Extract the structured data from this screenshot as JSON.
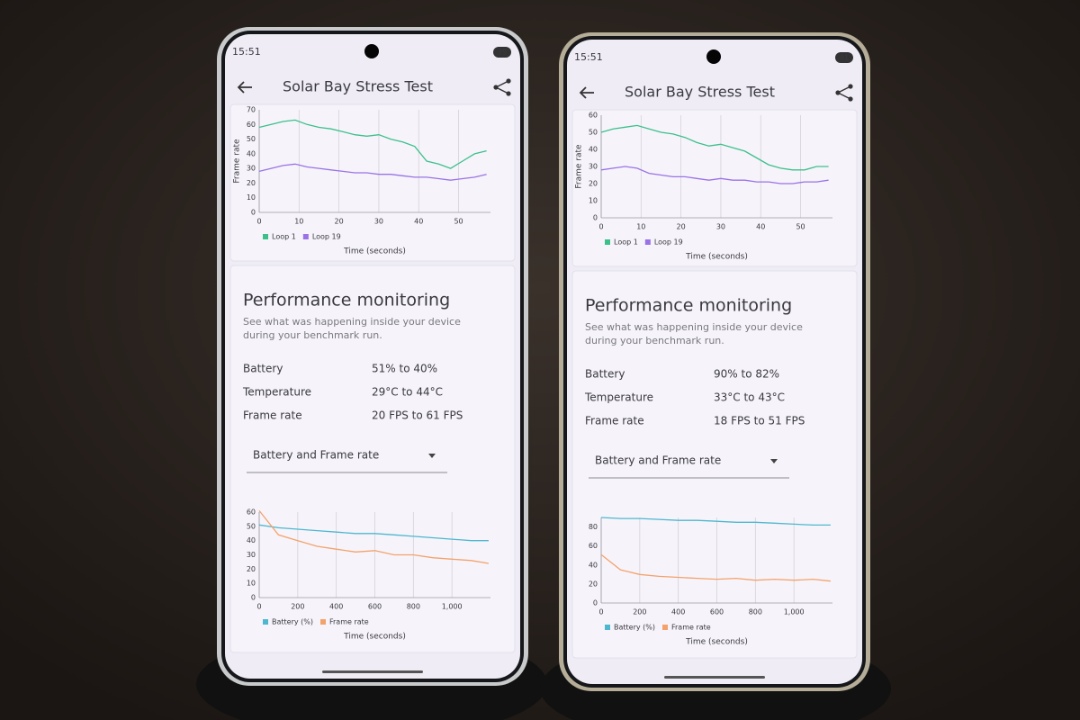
{
  "phones": [
    {
      "status": {
        "time": "15:51",
        "battery": "39"
      },
      "title": "Solar Bay Stress Test",
      "loop_chart": {
        "type": "line",
        "y_label": "Frame rate",
        "x_label": "Time (seconds)",
        "xlim": [
          0,
          58
        ],
        "ylim": [
          0,
          70
        ],
        "xticks": [
          0,
          10,
          20,
          30,
          40,
          50
        ],
        "yticks": [
          0,
          10,
          20,
          30,
          40,
          50,
          60,
          70
        ],
        "grid": "x",
        "x": [
          0,
          3,
          6,
          9,
          12,
          15,
          18,
          21,
          24,
          27,
          30,
          33,
          36,
          39,
          42,
          45,
          48,
          51,
          54,
          57
        ],
        "series": [
          {
            "name": "Loop 1",
            "color": "#3cc08a",
            "values": [
              58,
              60,
              62,
              63,
              60,
              58,
              57,
              55,
              53,
              52,
              53,
              50,
              48,
              45,
              35,
              33,
              30,
              35,
              40,
              42
            ]
          },
          {
            "name": "Loop 19",
            "color": "#9a72e6",
            "values": [
              28,
              30,
              32,
              33,
              31,
              30,
              29,
              28,
              27,
              27,
              26,
              26,
              25,
              24,
              24,
              23,
              22,
              23,
              24,
              26
            ]
          }
        ]
      },
      "performance": {
        "heading": "Performance monitoring",
        "description": "See what was happening inside your device during your benchmark run.",
        "rows": [
          {
            "label": "Battery",
            "value": "51% to 40%"
          },
          {
            "label": "Temperature",
            "value": "29°C to 44°C"
          },
          {
            "label": "Frame rate",
            "value": "20 FPS to 61 FPS"
          }
        ]
      },
      "dropdown": "Battery and Frame rate",
      "monitor_chart": {
        "type": "line",
        "x_label": "Time (seconds)",
        "xlim": [
          0,
          1200
        ],
        "ylim": [
          0,
          60
        ],
        "xticks": [
          0,
          200,
          400,
          600,
          800,
          {
            "value": 1000,
            "label": "1,000"
          }
        ],
        "yticks": [
          0,
          10,
          20,
          30,
          40,
          50,
          60
        ],
        "grid": "x",
        "x": [
          0,
          100,
          200,
          300,
          400,
          500,
          600,
          700,
          800,
          900,
          1000,
          1100,
          1190
        ],
        "series": [
          {
            "name": "Battery (%)",
            "color": "#4db7cf",
            "values": [
              51,
              49,
              48,
              47,
              46,
              45,
              45,
              44,
              43,
              42,
              41,
              40,
              40
            ]
          },
          {
            "name": "Frame rate",
            "color": "#f3a26c",
            "values": [
              61,
              44,
              40,
              36,
              34,
              32,
              33,
              30,
              30,
              28,
              27,
              26,
              24
            ]
          }
        ]
      }
    },
    {
      "status": {
        "time": "15:51",
        "battery": "81"
      },
      "title": "Solar Bay Stress Test",
      "loop_chart": {
        "type": "line",
        "y_label": "Frame rate",
        "x_label": "Time (seconds)",
        "xlim": [
          0,
          58
        ],
        "ylim": [
          0,
          60
        ],
        "xticks": [
          0,
          10,
          20,
          30,
          40,
          50
        ],
        "yticks": [
          0,
          10,
          20,
          30,
          40,
          50,
          60
        ],
        "grid": "x",
        "x": [
          0,
          3,
          6,
          9,
          12,
          15,
          18,
          21,
          24,
          27,
          30,
          33,
          36,
          39,
          42,
          45,
          48,
          51,
          54,
          57
        ],
        "series": [
          {
            "name": "Loop 1",
            "color": "#3cc08a",
            "values": [
              50,
              52,
              53,
              54,
              52,
              50,
              49,
              47,
              44,
              42,
              43,
              41,
              39,
              35,
              31,
              29,
              28,
              28,
              30,
              30
            ]
          },
          {
            "name": "Loop 19",
            "color": "#9a72e6",
            "values": [
              28,
              29,
              30,
              29,
              26,
              25,
              24,
              24,
              23,
              22,
              23,
              22,
              22,
              21,
              21,
              20,
              20,
              21,
              21,
              22
            ]
          }
        ]
      },
      "performance": {
        "heading": "Performance monitoring",
        "description": "See what was happening inside your device during your benchmark run.",
        "rows": [
          {
            "label": "Battery",
            "value": "90% to 82%"
          },
          {
            "label": "Temperature",
            "value": "33°C to 43°C"
          },
          {
            "label": "Frame rate",
            "value": "18 FPS to 51 FPS"
          }
        ]
      },
      "dropdown": "Battery and Frame rate",
      "monitor_chart": {
        "type": "line",
        "x_label": "Time (seconds)",
        "xlim": [
          0,
          1200
        ],
        "ylim": [
          0,
          90
        ],
        "xticks": [
          0,
          200,
          400,
          600,
          800,
          {
            "value": 1000,
            "label": "1,000"
          }
        ],
        "yticks": [
          0,
          20,
          40,
          60,
          80
        ],
        "grid": "x",
        "x": [
          0,
          100,
          200,
          300,
          400,
          500,
          600,
          700,
          800,
          900,
          1000,
          1100,
          1190
        ],
        "series": [
          {
            "name": "Battery (%)",
            "color": "#4db7cf",
            "values": [
              90,
              89,
              89,
              88,
              87,
              87,
              86,
              85,
              85,
              84,
              83,
              82,
              82
            ]
          },
          {
            "name": "Frame rate",
            "color": "#f3a26c",
            "values": [
              51,
              35,
              30,
              28,
              27,
              26,
              25,
              26,
              24,
              25,
              24,
              25,
              23
            ]
          }
        ]
      }
    }
  ]
}
